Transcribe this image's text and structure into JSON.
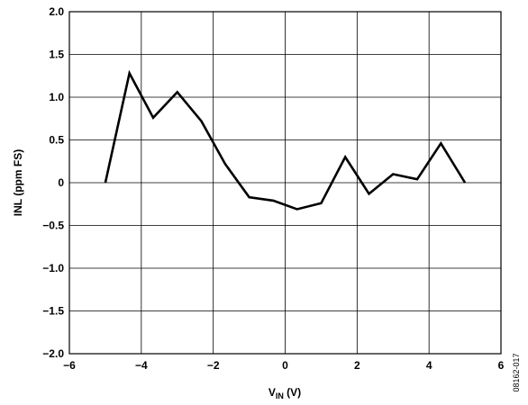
{
  "chart_data": {
    "type": "line",
    "title": "",
    "xlabel": {
      "main": "V",
      "sub": "IN",
      "unit": " (V)"
    },
    "ylabel": "INL (ppm FS)",
    "xlim": [
      -6,
      6
    ],
    "ylim": [
      -2.0,
      2.0
    ],
    "xticks": [
      -6,
      -4,
      -2,
      0,
      2,
      4,
      6
    ],
    "yticks": [
      2.0,
      1.5,
      1.0,
      0.5,
      0,
      -0.5,
      -1.0,
      -1.5,
      -2.0
    ],
    "xtick_labels": [
      "−6",
      "−4",
      "−2",
      "0",
      "2",
      "4",
      "6"
    ],
    "ytick_labels": [
      "2.0",
      "1.5",
      "1.0",
      "0.5",
      "0",
      "−0.5",
      "−1.0",
      "−1.5",
      "−2.0"
    ],
    "grid": true,
    "series": [
      {
        "color": "#000000",
        "x": [
          -5.0,
          -4.33,
          -3.67,
          -3.0,
          -2.33,
          -1.67,
          -1.0,
          -0.33,
          0.33,
          1.0,
          1.67,
          2.33,
          3.0,
          3.67,
          4.33,
          5.0
        ],
        "y": [
          0.0,
          1.28,
          0.76,
          1.06,
          0.72,
          0.22,
          -0.17,
          -0.21,
          -0.31,
          -0.24,
          0.3,
          -0.13,
          0.1,
          0.04,
          0.46,
          0.0
        ]
      }
    ]
  },
  "figure_id": "08162-017"
}
